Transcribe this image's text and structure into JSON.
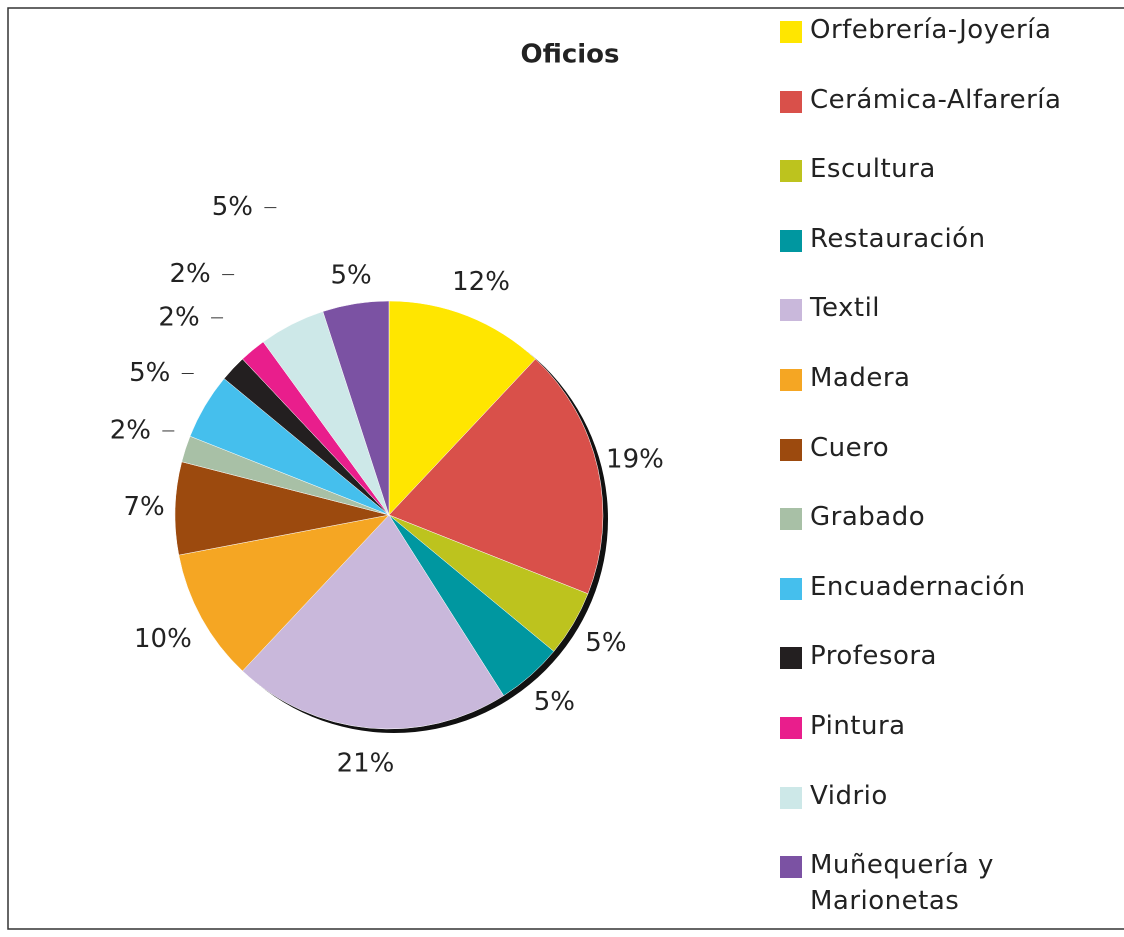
{
  "chart_data": {
    "type": "pie",
    "title": "Oficios",
    "categories": [
      "Orfebrería-Joyería",
      "Cerámica-Alfarería",
      "Escultura",
      "Restauración",
      "Textil",
      "Madera",
      "Cuero",
      "Grabado",
      "Encuadernación",
      "Profesora",
      "Pintura",
      "Vidrio",
      "Muñequería y Marionetas"
    ],
    "values": [
      12,
      19,
      5,
      5,
      21,
      10,
      7,
      2,
      5,
      2,
      2,
      5,
      5
    ],
    "value_labels": [
      "12%",
      "19%",
      "5%",
      "5%",
      "21%",
      "10%",
      "7%",
      "2%",
      "5%",
      "2%",
      "2%",
      "5%",
      "5%"
    ],
    "colors": [
      "#ffe600",
      "#d9504a",
      "#bdc31e",
      "#0097a0",
      "#c9b8db",
      "#f5a623",
      "#9c4a0e",
      "#a8c0a6",
      "#45bfed",
      "#231f20",
      "#e91e8c",
      "#cde8e8",
      "#7b52a3"
    ],
    "legend": "right"
  }
}
